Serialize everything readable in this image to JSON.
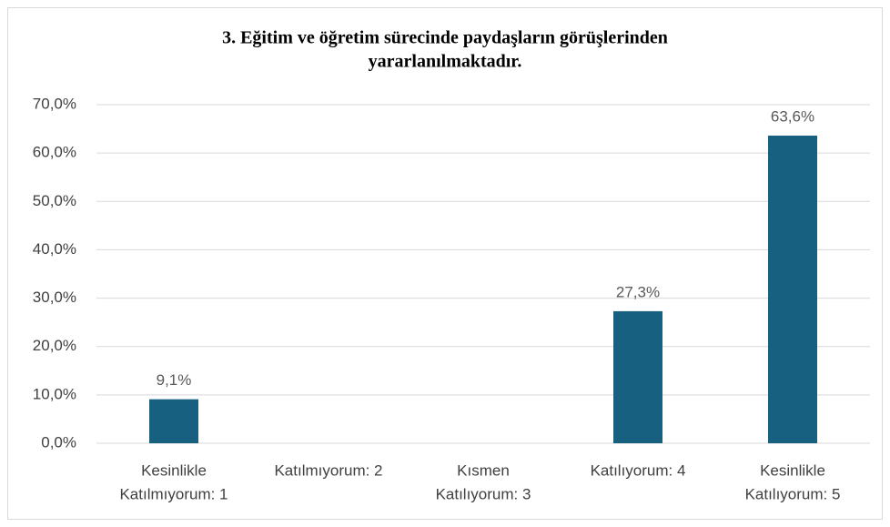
{
  "chart_data": {
    "type": "bar",
    "title": [
      "3. Eğitim ve öğretim sürecinde paydaşların görüşlerinden",
      "yararlanılmaktadır."
    ],
    "categories": [
      [
        "Kesinlikle",
        "Katılmıyorum: 1"
      ],
      [
        "Katılmıyorum: 2"
      ],
      [
        "Kısmen",
        "Katılıyorum: 3"
      ],
      [
        "Katılıyorum: 4"
      ],
      [
        "Kesinlikle",
        "Katılıyorum: 5"
      ]
    ],
    "values": [
      9.1,
      0,
      0,
      27.3,
      63.6
    ],
    "value_labels": [
      "9,1%",
      null,
      null,
      "27,3%",
      "63,6%"
    ],
    "color": "#17607f",
    "ylim": [
      0,
      70
    ],
    "yticks": [
      {
        "value": 0,
        "label": "0,0%"
      },
      {
        "value": 10,
        "label": "10,0%"
      },
      {
        "value": 20,
        "label": "20,0%"
      },
      {
        "value": 30,
        "label": "30,0%"
      },
      {
        "value": 40,
        "label": "40,0%"
      },
      {
        "value": 50,
        "label": "50,0%"
      },
      {
        "value": 60,
        "label": "60,0%"
      },
      {
        "value": 70,
        "label": "70,0%"
      }
    ],
    "grid": true
  }
}
